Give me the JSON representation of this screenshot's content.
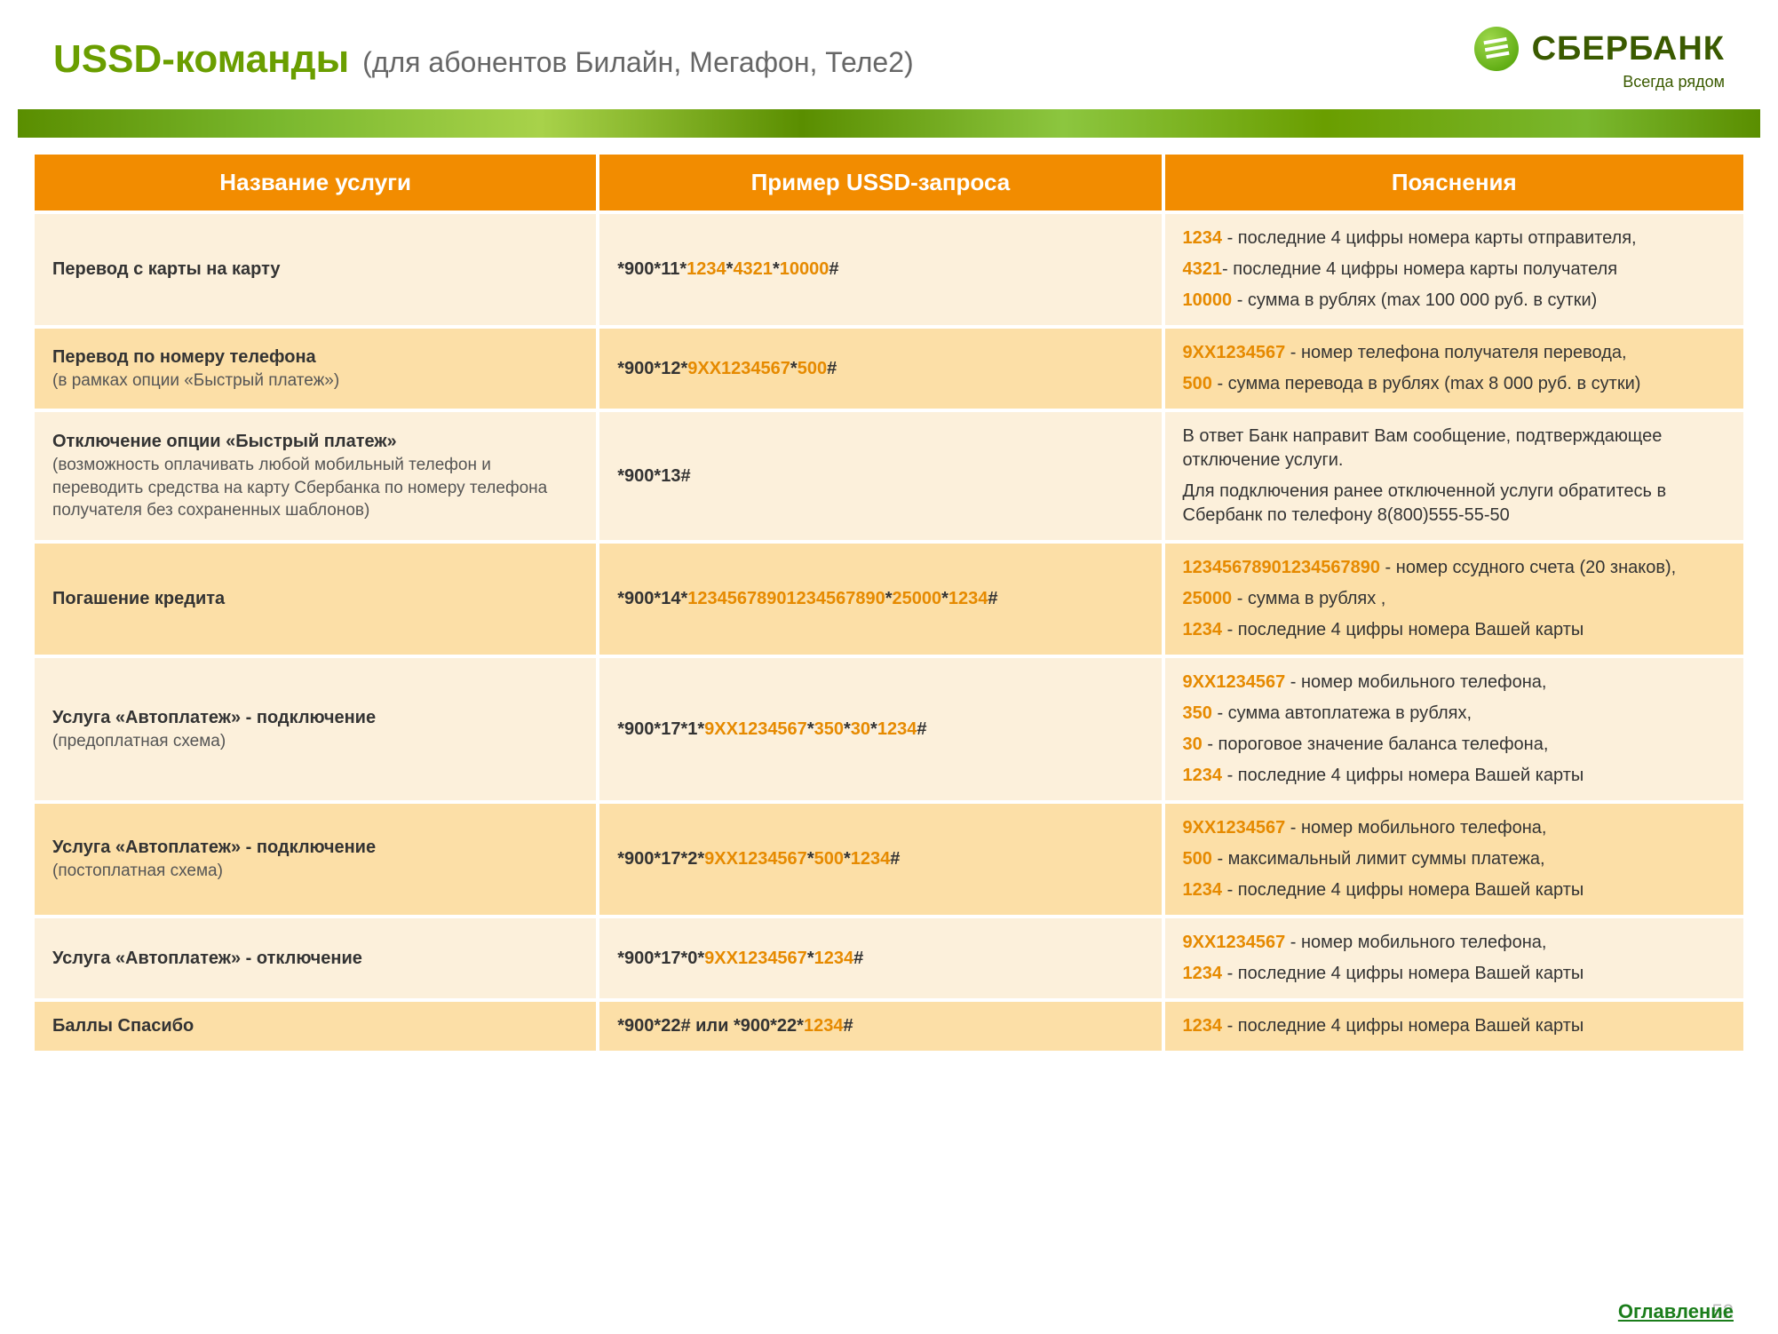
{
  "header": {
    "title": "USSD-команды",
    "subtitle": "(для абонентов Билайн, Мегафон, Теле2)",
    "logo_name": "СБЕРБАНК",
    "logo_slogan": "Всегда рядом"
  },
  "columns": [
    "Название услуги",
    "Пример USSD-запроса",
    "Пояснения"
  ],
  "rows": [
    {
      "shade": "light",
      "service": {
        "bold": "Перевод с карты на карту"
      },
      "example": [
        {
          "t": "*900*11*",
          "hl": false
        },
        {
          "t": "1234",
          "hl": true
        },
        {
          "t": "*",
          "hl": false
        },
        {
          "t": "4321",
          "hl": true
        },
        {
          "t": "*",
          "hl": false
        },
        {
          "t": "10000",
          "hl": true
        },
        {
          "t": "#",
          "hl": false
        }
      ],
      "expl": [
        [
          {
            "t": "1234",
            "hl": true
          },
          {
            "t": " - последние 4 цифры номера карты отправителя,",
            "hl": false
          }
        ],
        [
          {
            "t": "4321",
            "hl": true
          },
          {
            "t": "- последние 4 цифры номера карты получателя",
            "hl": false
          }
        ],
        [
          {
            "t": "10000",
            "hl": true
          },
          {
            "t": " - сумма в рублях (max 100 000 руб. в сутки)",
            "hl": false
          }
        ]
      ]
    },
    {
      "shade": "dark",
      "service": {
        "bold": "Перевод по номеру телефона",
        "note": "(в рамках опции «Быстрый платеж»)"
      },
      "example": [
        {
          "t": "*900*12*",
          "hl": false
        },
        {
          "t": "9XX1234567",
          "hl": true
        },
        {
          "t": "*",
          "hl": false
        },
        {
          "t": "500",
          "hl": true
        },
        {
          "t": "#",
          "hl": false
        }
      ],
      "expl": [
        [
          {
            "t": "9XX1234567",
            "hl": true
          },
          {
            "t": " - номер телефона получателя перевода,",
            "hl": false
          }
        ],
        [
          {
            "t": "500",
            "hl": true
          },
          {
            "t": " - сумма перевода в рублях (max 8 000 руб. в сутки)",
            "hl": false
          }
        ]
      ]
    },
    {
      "shade": "light",
      "service": {
        "bold": "Отключение опции «Быстрый платеж»",
        "note": "(возможность оплачивать любой мобильный телефон и переводить средства на карту Сбербанка по номеру телефона получателя без сохраненных шаблонов)"
      },
      "example": [
        {
          "t": "*900*13#",
          "hl": false
        }
      ],
      "expl": [
        [
          {
            "t": "В ответ Банк направит Вам сообщение, подтверждающее отключение услуги.",
            "hl": false
          }
        ],
        [
          {
            "t": "Для подключения ранее отключенной услуги обратитесь в Сбербанк по телефону 8(800)555-55-50",
            "hl": false
          }
        ]
      ]
    },
    {
      "shade": "dark",
      "service": {
        "bold": "Погашение кредита"
      },
      "example": [
        {
          "t": "*900*14*",
          "hl": false
        },
        {
          "t": "12345678901234567890",
          "hl": true
        },
        {
          "t": "*",
          "hl": false
        },
        {
          "t": "25000",
          "hl": true
        },
        {
          "t": "*",
          "hl": false
        },
        {
          "t": "1234",
          "hl": true
        },
        {
          "t": "#",
          "hl": false
        }
      ],
      "expl": [
        [
          {
            "t": "12345678901234567890",
            "hl": true
          },
          {
            "t": " - номер ссудного счета (20 знаков),",
            "hl": false
          }
        ],
        [
          {
            "t": "25000",
            "hl": true
          },
          {
            "t": " - сумма в рублях ,",
            "hl": false
          }
        ],
        [
          {
            "t": "1234",
            "hl": true
          },
          {
            "t": " - последние 4 цифры номера Вашей карты",
            "hl": false
          }
        ]
      ]
    },
    {
      "shade": "light",
      "service": {
        "bold": "Услуга «Автоплатеж» - подключение",
        "note": "(предоплатная схема)"
      },
      "example": [
        {
          "t": "*900*17*1*",
          "hl": false
        },
        {
          "t": "9XX1234567",
          "hl": true
        },
        {
          "t": "*",
          "hl": false
        },
        {
          "t": "350",
          "hl": true
        },
        {
          "t": "*",
          "hl": false
        },
        {
          "t": "30",
          "hl": true
        },
        {
          "t": "*",
          "hl": false
        },
        {
          "t": "1234",
          "hl": true
        },
        {
          "t": "#",
          "hl": false
        }
      ],
      "expl": [
        [
          {
            "t": "9XX1234567",
            "hl": true
          },
          {
            "t": " - номер мобильного телефона,",
            "hl": false
          }
        ],
        [
          {
            "t": "350",
            "hl": true
          },
          {
            "t": " - сумма автоплатежа в рублях,",
            "hl": false
          }
        ],
        [
          {
            "t": "30",
            "hl": true
          },
          {
            "t": " - пороговое значение баланса телефона,",
            "hl": false
          }
        ],
        [
          {
            "t": "1234",
            "hl": true
          },
          {
            "t": " - последние 4 цифры номера Вашей карты",
            "hl": false
          }
        ]
      ]
    },
    {
      "shade": "dark",
      "service": {
        "bold": "Услуга «Автоплатеж» - подключение",
        "note": "(постоплатная схема)"
      },
      "example": [
        {
          "t": "*900*17*2*",
          "hl": false
        },
        {
          "t": "9XX1234567",
          "hl": true
        },
        {
          "t": "*",
          "hl": false
        },
        {
          "t": "500",
          "hl": true
        },
        {
          "t": "*",
          "hl": false
        },
        {
          "t": "1234",
          "hl": true
        },
        {
          "t": "#",
          "hl": false
        }
      ],
      "expl": [
        [
          {
            "t": "9XX1234567",
            "hl": true
          },
          {
            "t": " - номер мобильного телефона,",
            "hl": false
          }
        ],
        [
          {
            "t": "500",
            "hl": true
          },
          {
            "t": " - максимальный лимит суммы платежа,",
            "hl": false
          }
        ],
        [
          {
            "t": "1234",
            "hl": true
          },
          {
            "t": " - последние 4 цифры номера Вашей карты",
            "hl": false
          }
        ]
      ]
    },
    {
      "shade": "light",
      "service": {
        "bold": "Услуга «Автоплатеж» - отключение"
      },
      "example": [
        {
          "t": "*900*17*0*",
          "hl": false
        },
        {
          "t": "9XX1234567",
          "hl": true
        },
        {
          "t": "*",
          "hl": false
        },
        {
          "t": "1234",
          "hl": true
        },
        {
          "t": "#",
          "hl": false
        }
      ],
      "expl": [
        [
          {
            "t": "9XX1234567",
            "hl": true
          },
          {
            "t": " - номер мобильного телефона,",
            "hl": false
          }
        ],
        [
          {
            "t": "1234",
            "hl": true
          },
          {
            "t": " - последние 4 цифры номера Вашей карты",
            "hl": false
          }
        ]
      ]
    },
    {
      "shade": "dark",
      "service": {
        "bold": "Баллы Спасибо"
      },
      "example": [
        {
          "t": "*900*22# или *900*22*",
          "hl": false
        },
        {
          "t": "1234",
          "hl": true
        },
        {
          "t": "#",
          "hl": false
        }
      ],
      "expl": [
        [
          {
            "t": "1234",
            "hl": true
          },
          {
            "t": " - последние 4 цифры номера Вашей карты",
            "hl": false
          }
        ]
      ]
    }
  ],
  "footer": {
    "page": "52",
    "toc": "Оглавление"
  }
}
